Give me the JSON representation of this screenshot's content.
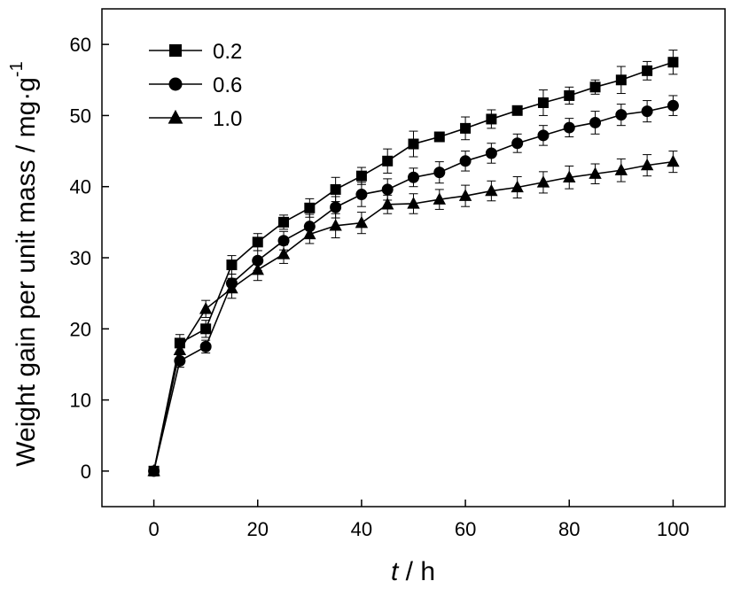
{
  "chart_data": {
    "type": "line",
    "title": "",
    "xlabel_italic": "t",
    "xlabel_rest": " / h",
    "ylabel_main": "Weight gain per unit mass / mg·g",
    "ylabel_sup": "-1",
    "xlim": [
      -10,
      110
    ],
    "ylim": [
      -5,
      65
    ],
    "xticks": [
      0,
      20,
      40,
      60,
      80,
      100
    ],
    "yticks": [
      0,
      10,
      20,
      30,
      40,
      50,
      60
    ],
    "grid": false,
    "legend_position": "top-left",
    "x": [
      0,
      5,
      10,
      15,
      20,
      25,
      30,
      35,
      40,
      45,
      50,
      55,
      60,
      65,
      70,
      75,
      80,
      85,
      90,
      95,
      100
    ],
    "series": [
      {
        "name": "0.2",
        "marker": "square",
        "values": [
          0,
          18.0,
          20.0,
          29.0,
          32.2,
          35.0,
          37.0,
          39.6,
          41.5,
          43.6,
          46.0,
          47.0,
          48.2,
          49.5,
          50.7,
          51.8,
          52.8,
          54.0,
          55.0,
          56.3,
          57.5
        ],
        "errors": [
          0.4,
          1.2,
          1.2,
          1.3,
          1.2,
          1.0,
          1.3,
          1.7,
          1.2,
          1.7,
          1.8,
          0.4,
          1.6,
          1.3,
          0.3,
          1.8,
          1.2,
          1.0,
          1.9,
          1.3,
          1.7
        ]
      },
      {
        "name": "0.6",
        "marker": "circle",
        "values": [
          0,
          15.5,
          17.5,
          26.4,
          29.6,
          32.4,
          34.4,
          37.1,
          38.9,
          39.6,
          41.3,
          42.0,
          43.6,
          44.7,
          46.1,
          47.2,
          48.3,
          49.0,
          50.1,
          50.6,
          51.4
        ],
        "errors": [
          0.4,
          0.9,
          0.9,
          1.3,
          1.4,
          1.3,
          1.7,
          1.5,
          1.7,
          1.5,
          1.3,
          1.5,
          1.4,
          1.4,
          1.3,
          1.4,
          1.3,
          1.6,
          1.5,
          1.5,
          1.4
        ]
      },
      {
        "name": "1.0",
        "marker": "triangle",
        "values": [
          0,
          17.0,
          22.8,
          25.7,
          28.3,
          30.5,
          33.3,
          34.5,
          34.9,
          37.5,
          37.6,
          38.2,
          38.7,
          39.4,
          39.9,
          40.6,
          41.3,
          41.8,
          42.3,
          43.0,
          43.5
        ],
        "errors": [
          0.4,
          1.3,
          1.2,
          1.4,
          1.5,
          1.3,
          1.3,
          1.7,
          1.5,
          1.3,
          1.4,
          1.4,
          1.5,
          1.4,
          1.5,
          1.5,
          1.6,
          1.4,
          1.6,
          1.5,
          1.5
        ]
      }
    ]
  }
}
